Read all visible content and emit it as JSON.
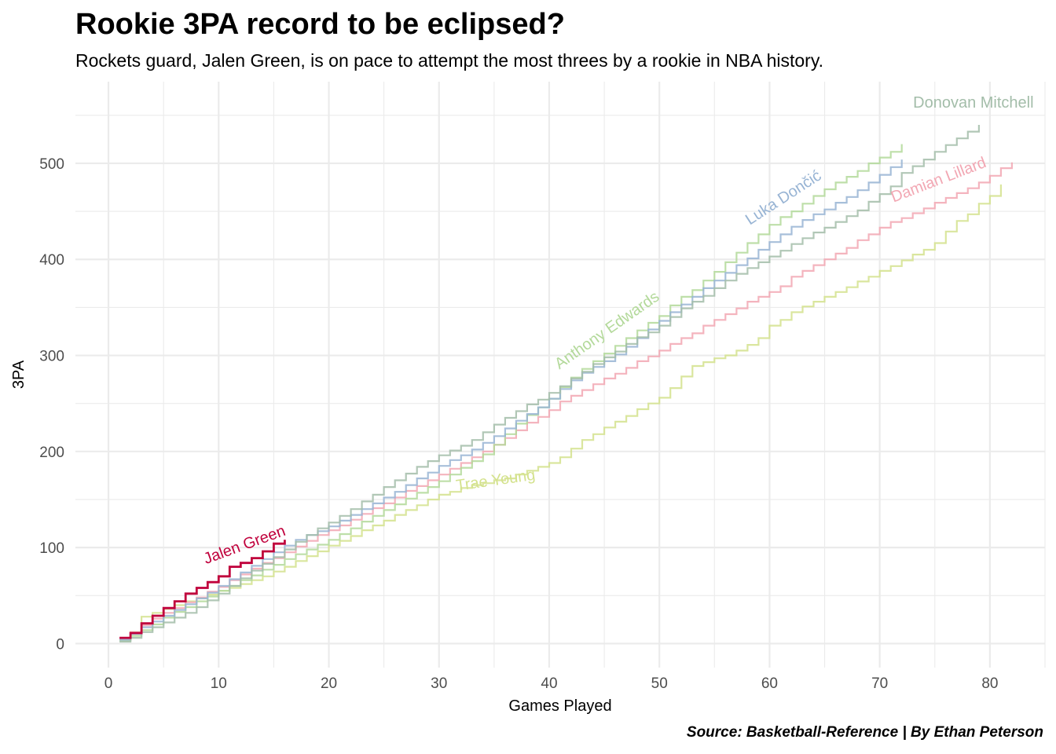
{
  "title": "Rookie 3PA record to be eclipsed?",
  "subtitle": "Rockets guard, Jalen Green, is on pace to attempt the most threes by a rookie in NBA history.",
  "caption": "Source: Basketball-Reference | By Ethan Peterson",
  "chart_data": {
    "type": "line",
    "step": true,
    "title": "Rookie 3PA record to be eclipsed?",
    "xlabel": "Games Played",
    "ylabel": "3PA",
    "xlim": [
      -3,
      85
    ],
    "ylim": [
      -25,
      585
    ],
    "x_ticks": [
      0,
      10,
      20,
      30,
      40,
      50,
      60,
      70,
      80
    ],
    "y_ticks": [
      0,
      100,
      200,
      300,
      400,
      500
    ],
    "grid": true,
    "legend": "none (direct labels)",
    "series": [
      {
        "name": "Trae Young",
        "color": "#d4e28d",
        "x": [
          1,
          2,
          3,
          4,
          5,
          6,
          7,
          8,
          9,
          10,
          11,
          12,
          13,
          14,
          15,
          16,
          17,
          18,
          19,
          20,
          21,
          22,
          23,
          24,
          25,
          26,
          27,
          28,
          29,
          30,
          31,
          32,
          33,
          34,
          35,
          36,
          37,
          38,
          39,
          40,
          41,
          42,
          43,
          44,
          45,
          46,
          47,
          48,
          49,
          50,
          51,
          52,
          53,
          54,
          55,
          56,
          57,
          58,
          59,
          60,
          61,
          62,
          63,
          64,
          65,
          66,
          67,
          68,
          69,
          70,
          71,
          72,
          73,
          74,
          75,
          76,
          77,
          78,
          79,
          80,
          81
        ],
        "y": [
          4,
          12,
          28,
          32,
          36,
          40,
          44,
          47,
          51,
          55,
          58,
          62,
          66,
          70,
          75,
          80,
          86,
          91,
          96,
          102,
          107,
          112,
          118,
          123,
          128,
          134,
          139,
          144,
          150,
          155,
          158,
          162,
          165,
          167,
          170,
          172,
          176,
          180,
          184,
          188,
          194,
          203,
          212,
          218,
          225,
          231,
          237,
          244,
          250,
          256,
          266,
          278,
          289,
          293,
          297,
          300,
          305,
          311,
          318,
          331,
          337,
          345,
          351,
          356,
          361,
          366,
          371,
          377,
          382,
          388,
          393,
          399,
          405,
          410,
          417,
          429,
          440,
          447,
          458,
          466,
          478
        ]
      },
      {
        "name": "Damian Lillard",
        "color": "#f2a7b3",
        "x": [
          1,
          2,
          3,
          4,
          5,
          6,
          7,
          8,
          9,
          10,
          11,
          12,
          13,
          14,
          15,
          16,
          17,
          18,
          19,
          20,
          21,
          22,
          23,
          24,
          25,
          26,
          27,
          28,
          29,
          30,
          31,
          32,
          33,
          34,
          35,
          36,
          37,
          38,
          39,
          40,
          41,
          42,
          43,
          44,
          45,
          46,
          47,
          48,
          49,
          50,
          51,
          52,
          53,
          54,
          55,
          56,
          57,
          58,
          59,
          60,
          61,
          62,
          63,
          64,
          65,
          66,
          67,
          68,
          69,
          70,
          71,
          72,
          73,
          74,
          75,
          76,
          77,
          78,
          79,
          80,
          81,
          82
        ],
        "y": [
          5,
          12,
          19,
          26,
          32,
          37,
          43,
          48,
          54,
          59,
          66,
          72,
          78,
          84,
          89,
          95,
          101,
          107,
          113,
          118,
          123,
          129,
          135,
          141,
          146,
          152,
          159,
          164,
          170,
          176,
          182,
          188,
          194,
          200,
          207,
          214,
          222,
          230,
          236,
          243,
          252,
          258,
          264,
          270,
          276,
          281,
          287,
          294,
          299,
          305,
          312,
          318,
          323,
          331,
          337,
          343,
          349,
          356,
          361,
          366,
          372,
          382,
          388,
          394,
          400,
          406,
          412,
          420,
          426,
          433,
          439,
          443,
          448,
          453,
          459,
          464,
          469,
          474,
          480,
          487,
          495,
          501
        ]
      },
      {
        "name": "Anthony Edwards",
        "color": "#b3d99a",
        "x": [
          1,
          2,
          3,
          4,
          5,
          6,
          7,
          8,
          9,
          10,
          11,
          12,
          13,
          14,
          15,
          16,
          17,
          18,
          19,
          20,
          21,
          22,
          23,
          24,
          25,
          26,
          27,
          28,
          29,
          30,
          31,
          32,
          33,
          34,
          35,
          36,
          37,
          38,
          39,
          40,
          41,
          42,
          43,
          44,
          45,
          46,
          47,
          48,
          49,
          50,
          51,
          52,
          53,
          54,
          55,
          56,
          57,
          58,
          59,
          60,
          61,
          62,
          63,
          64,
          65,
          66,
          67,
          68,
          69,
          70,
          71,
          72
        ],
        "y": [
          3,
          8,
          14,
          20,
          27,
          33,
          38,
          44,
          49,
          55,
          60,
          66,
          71,
          77,
          82,
          88,
          93,
          98,
          103,
          108,
          114,
          120,
          127,
          133,
          139,
          145,
          151,
          157,
          163,
          169,
          176,
          183,
          190,
          197,
          207,
          218,
          229,
          238,
          246,
          255,
          267,
          277,
          286,
          294,
          302,
          310,
          318,
          326,
          334,
          341,
          352,
          361,
          368,
          378,
          387,
          397,
          407,
          417,
          426,
          436,
          444,
          450,
          458,
          466,
          473,
          480,
          486,
          492,
          500,
          506,
          512,
          520
        ]
      },
      {
        "name": "Luka Dončić",
        "color": "#98b4d4",
        "x": [
          1,
          2,
          3,
          4,
          5,
          6,
          7,
          8,
          9,
          10,
          11,
          12,
          13,
          14,
          15,
          16,
          17,
          18,
          19,
          20,
          21,
          22,
          23,
          24,
          25,
          26,
          27,
          28,
          29,
          30,
          31,
          32,
          33,
          34,
          35,
          36,
          37,
          38,
          39,
          40,
          41,
          42,
          43,
          44,
          45,
          46,
          47,
          48,
          49,
          50,
          51,
          52,
          53,
          54,
          55,
          56,
          57,
          58,
          59,
          60,
          61,
          62,
          63,
          64,
          65,
          66,
          67,
          68,
          69,
          70,
          71,
          72
        ],
        "y": [
          4,
          10,
          17,
          23,
          29,
          35,
          41,
          47,
          53,
          60,
          67,
          74,
          81,
          88,
          95,
          102,
          108,
          113,
          117,
          122,
          128,
          134,
          140,
          146,
          152,
          158,
          165,
          172,
          178,
          185,
          191,
          196,
          202,
          209,
          216,
          224,
          232,
          239,
          246,
          255,
          265,
          274,
          282,
          288,
          294,
          301,
          309,
          318,
          327,
          336,
          345,
          353,
          361,
          370,
          378,
          386,
          394,
          401,
          410,
          418,
          426,
          434,
          441,
          447,
          452,
          459,
          465,
          472,
          480,
          488,
          496,
          504
        ]
      },
      {
        "name": "Donovan Mitchell",
        "color": "#a3bda9",
        "x": [
          1,
          2,
          3,
          4,
          5,
          6,
          7,
          8,
          9,
          10,
          11,
          12,
          13,
          14,
          15,
          16,
          17,
          18,
          19,
          20,
          21,
          22,
          23,
          24,
          25,
          26,
          27,
          28,
          29,
          30,
          31,
          32,
          33,
          34,
          35,
          36,
          37,
          38,
          39,
          40,
          41,
          42,
          43,
          44,
          45,
          46,
          47,
          48,
          49,
          50,
          51,
          52,
          53,
          54,
          55,
          56,
          57,
          58,
          59,
          60,
          61,
          62,
          63,
          64,
          65,
          66,
          67,
          68,
          69,
          70,
          71,
          72,
          73,
          74,
          75,
          76,
          77,
          78,
          79
        ],
        "y": [
          2,
          6,
          12,
          17,
          22,
          27,
          32,
          38,
          45,
          52,
          60,
          68,
          76,
          83,
          90,
          98,
          106,
          113,
          120,
          126,
          133,
          140,
          148,
          155,
          163,
          170,
          177,
          184,
          190,
          196,
          201,
          206,
          212,
          220,
          228,
          235,
          242,
          249,
          254,
          261,
          268,
          276,
          283,
          291,
          298,
          304,
          312,
          319,
          324,
          331,
          340,
          349,
          356,
          362,
          370,
          378,
          385,
          391,
          397,
          403,
          409,
          416,
          422,
          428,
          433,
          439,
          445,
          451,
          460,
          468,
          476,
          490,
          497,
          504,
          512,
          519,
          526,
          533,
          540
        ]
      },
      {
        "name": "Jalen Green",
        "color": "#c0003c",
        "x": [
          1,
          2,
          3,
          4,
          5,
          6,
          7,
          8,
          9,
          10,
          11,
          12,
          13,
          14,
          15,
          16
        ],
        "y": [
          6,
          11,
          21,
          29,
          37,
          44,
          52,
          58,
          64,
          70,
          80,
          84,
          89,
          96,
          104,
          108
        ]
      }
    ]
  }
}
